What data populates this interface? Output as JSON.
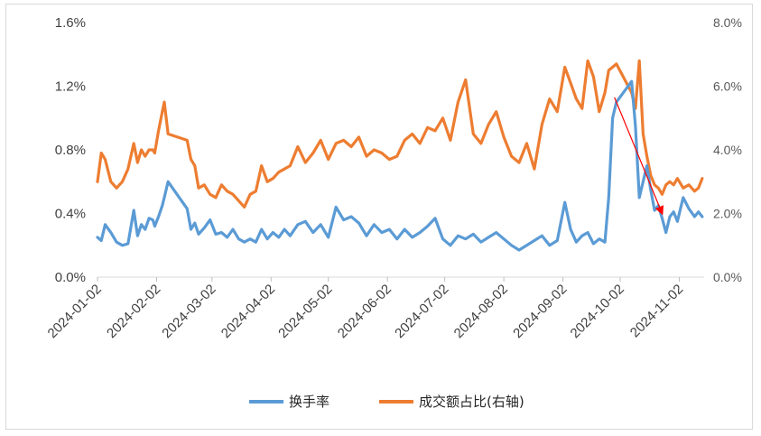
{
  "chart_data": {
    "type": "line",
    "x_ticks": [
      "2024-01-02",
      "2024-02-02",
      "2024-03-02",
      "2024-04-02",
      "2024-05-02",
      "2024-06-02",
      "2024-07-02",
      "2024-08-02",
      "2024-09-02",
      "2024-10-02",
      "2024-11-02"
    ],
    "y_left": {
      "ticks": [
        "0.0%",
        "0.4%",
        "0.8%",
        "1.2%",
        "1.6%"
      ],
      "ylim": [
        0,
        1.6
      ]
    },
    "y_right": {
      "ticks": [
        "0.0%",
        "2.0%",
        "4.0%",
        "6.0%",
        "8.0%"
      ],
      "ylim": [
        0,
        8
      ]
    },
    "legend": [
      "换手率",
      "成交额占比(右轴)"
    ],
    "legend_position": "bottom-center",
    "grid": false,
    "colors": {
      "turnover": "#5b9bd5",
      "share": "#ed7d31",
      "arrow": "#ff0000"
    },
    "series": [
      {
        "name": "换手率",
        "axis": "left",
        "x": [
          "2024-01-02",
          "2024-01-04",
          "2024-01-06",
          "2024-01-09",
          "2024-01-12",
          "2024-01-15",
          "2024-01-18",
          "2024-01-21",
          "2024-01-23",
          "2024-01-25",
          "2024-01-27",
          "2024-01-29",
          "2024-01-31",
          "2024-02-01",
          "2024-02-03",
          "2024-02-05",
          "2024-02-06",
          "2024-02-08",
          "2024-02-18",
          "2024-02-20",
          "2024-02-22",
          "2024-02-24",
          "2024-02-27",
          "2024-03-01",
          "2024-03-04",
          "2024-03-07",
          "2024-03-10",
          "2024-03-13",
          "2024-03-16",
          "2024-03-19",
          "2024-03-22",
          "2024-03-25",
          "2024-03-28",
          "2024-03-31",
          "2024-04-03",
          "2024-04-06",
          "2024-04-09",
          "2024-04-12",
          "2024-04-16",
          "2024-04-20",
          "2024-04-24",
          "2024-04-28",
          "2024-05-02",
          "2024-05-06",
          "2024-05-10",
          "2024-05-14",
          "2024-05-18",
          "2024-05-22",
          "2024-05-26",
          "2024-05-30",
          "2024-06-03",
          "2024-06-07",
          "2024-06-11",
          "2024-06-15",
          "2024-06-19",
          "2024-06-23",
          "2024-06-27",
          "2024-07-01",
          "2024-07-05",
          "2024-07-09",
          "2024-07-13",
          "2024-07-17",
          "2024-07-21",
          "2024-07-25",
          "2024-07-29",
          "2024-08-02",
          "2024-08-06",
          "2024-08-10",
          "2024-08-14",
          "2024-08-18",
          "2024-08-22",
          "2024-08-26",
          "2024-08-30",
          "2024-09-03",
          "2024-09-06",
          "2024-09-09",
          "2024-09-12",
          "2024-09-15",
          "2024-09-18",
          "2024-09-21",
          "2024-09-24",
          "2024-09-26",
          "2024-09-28",
          "2024-09-30",
          "2024-10-08",
          "2024-10-10",
          "2024-10-12",
          "2024-10-14",
          "2024-10-16",
          "2024-10-18",
          "2024-10-20",
          "2024-10-22",
          "2024-10-24",
          "2024-10-26",
          "2024-10-28",
          "2024-10-30",
          "2024-11-01",
          "2024-11-04",
          "2024-11-07",
          "2024-11-10",
          "2024-11-12",
          "2024-11-14"
        ],
        "values": [
          0.25,
          0.23,
          0.33,
          0.28,
          0.22,
          0.2,
          0.21,
          0.42,
          0.26,
          0.33,
          0.3,
          0.37,
          0.36,
          0.32,
          0.38,
          0.45,
          0.5,
          0.6,
          0.43,
          0.3,
          0.34,
          0.27,
          0.31,
          0.36,
          0.27,
          0.28,
          0.25,
          0.3,
          0.24,
          0.22,
          0.24,
          0.22,
          0.3,
          0.24,
          0.28,
          0.25,
          0.3,
          0.26,
          0.33,
          0.35,
          0.28,
          0.33,
          0.25,
          0.44,
          0.36,
          0.38,
          0.34,
          0.26,
          0.33,
          0.28,
          0.3,
          0.24,
          0.3,
          0.25,
          0.28,
          0.32,
          0.37,
          0.24,
          0.2,
          0.26,
          0.24,
          0.27,
          0.22,
          0.25,
          0.28,
          0.24,
          0.2,
          0.17,
          0.2,
          0.23,
          0.26,
          0.2,
          0.23,
          0.47,
          0.3,
          0.22,
          0.26,
          0.28,
          0.21,
          0.24,
          0.22,
          0.5,
          1.0,
          1.1,
          1.23,
          0.95,
          0.5,
          0.6,
          0.7,
          0.55,
          0.42,
          0.45,
          0.37,
          0.28,
          0.38,
          0.41,
          0.35,
          0.5,
          0.43,
          0.38,
          0.41,
          0.38
        ]
      },
      {
        "name": "成交额占比(右轴)",
        "axis": "right",
        "x": [
          "2024-01-02",
          "2024-01-04",
          "2024-01-06",
          "2024-01-09",
          "2024-01-12",
          "2024-01-15",
          "2024-01-18",
          "2024-01-21",
          "2024-01-23",
          "2024-01-25",
          "2024-01-27",
          "2024-01-29",
          "2024-01-31",
          "2024-02-01",
          "2024-02-03",
          "2024-02-05",
          "2024-02-06",
          "2024-02-08",
          "2024-02-18",
          "2024-02-20",
          "2024-02-22",
          "2024-02-24",
          "2024-02-27",
          "2024-03-01",
          "2024-03-04",
          "2024-03-07",
          "2024-03-10",
          "2024-03-13",
          "2024-03-16",
          "2024-03-19",
          "2024-03-22",
          "2024-03-25",
          "2024-03-28",
          "2024-03-31",
          "2024-04-03",
          "2024-04-06",
          "2024-04-09",
          "2024-04-12",
          "2024-04-16",
          "2024-04-20",
          "2024-04-24",
          "2024-04-28",
          "2024-05-02",
          "2024-05-06",
          "2024-05-10",
          "2024-05-14",
          "2024-05-18",
          "2024-05-22",
          "2024-05-26",
          "2024-05-30",
          "2024-06-03",
          "2024-06-07",
          "2024-06-11",
          "2024-06-15",
          "2024-06-19",
          "2024-06-23",
          "2024-06-27",
          "2024-07-01",
          "2024-07-05",
          "2024-07-09",
          "2024-07-13",
          "2024-07-17",
          "2024-07-21",
          "2024-07-25",
          "2024-07-29",
          "2024-08-02",
          "2024-08-06",
          "2024-08-10",
          "2024-08-14",
          "2024-08-18",
          "2024-08-22",
          "2024-08-26",
          "2024-08-30",
          "2024-09-03",
          "2024-09-06",
          "2024-09-09",
          "2024-09-12",
          "2024-09-15",
          "2024-09-18",
          "2024-09-21",
          "2024-09-24",
          "2024-09-26",
          "2024-09-28",
          "2024-09-30",
          "2024-10-08",
          "2024-10-10",
          "2024-10-12",
          "2024-10-14",
          "2024-10-16",
          "2024-10-18",
          "2024-10-20",
          "2024-10-22",
          "2024-10-24",
          "2024-10-26",
          "2024-10-28",
          "2024-10-30",
          "2024-11-01",
          "2024-11-04",
          "2024-11-07",
          "2024-11-10",
          "2024-11-12",
          "2024-11-14"
        ],
        "values": [
          3.0,
          3.9,
          3.7,
          3.0,
          2.8,
          3.0,
          3.4,
          4.2,
          3.6,
          4.0,
          3.8,
          4.0,
          4.0,
          3.9,
          4.6,
          5.2,
          5.5,
          4.5,
          4.3,
          3.7,
          3.5,
          2.8,
          2.9,
          2.6,
          2.5,
          2.9,
          2.7,
          2.6,
          2.4,
          2.2,
          2.6,
          2.7,
          3.5,
          3.0,
          3.1,
          3.3,
          3.4,
          3.5,
          4.1,
          3.6,
          3.9,
          4.3,
          3.7,
          4.2,
          4.3,
          4.1,
          4.4,
          3.8,
          4.0,
          3.9,
          3.7,
          3.8,
          4.3,
          4.5,
          4.2,
          4.7,
          4.6,
          5.0,
          4.3,
          5.5,
          6.2,
          4.5,
          4.2,
          4.8,
          5.2,
          4.4,
          3.8,
          3.6,
          4.2,
          3.4,
          4.8,
          5.6,
          5.2,
          6.6,
          6.1,
          5.6,
          5.3,
          6.8,
          6.3,
          5.2,
          5.8,
          6.5,
          6.6,
          6.7,
          5.8,
          5.3,
          6.8,
          4.5,
          3.8,
          3.2,
          2.9,
          2.8,
          2.6,
          2.9,
          3.0,
          2.9,
          3.1,
          2.8,
          2.9,
          2.7,
          2.8,
          3.1
        ]
      }
    ],
    "annotations": [
      {
        "type": "arrow",
        "from": {
          "x": "2024-09-29",
          "y_left": 1.13
        },
        "to": {
          "x": "2024-10-24",
          "y_left": 0.4
        }
      }
    ]
  }
}
